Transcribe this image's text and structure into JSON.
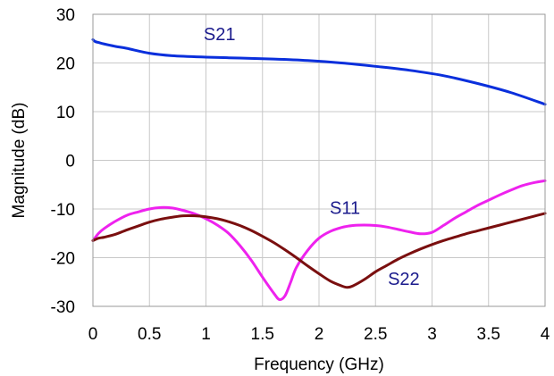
{
  "chart_data": {
    "type": "line",
    "title": "",
    "xlabel": "Frequency (GHz)",
    "ylabel": "Magnitude (dB)",
    "xlim": [
      0,
      4
    ],
    "ylim": [
      -30,
      30
    ],
    "x_ticks": [
      0,
      0.5,
      1,
      1.5,
      2,
      2.5,
      3,
      3.5,
      4
    ],
    "y_ticks": [
      -30,
      -20,
      -10,
      0,
      10,
      20,
      30
    ],
    "x_tick_labels": [
      "0",
      "0.5",
      "1",
      "1.5",
      "2",
      "2.5",
      "3",
      "3.5",
      "4"
    ],
    "y_tick_labels": [
      "-30",
      "-20",
      "-10",
      "0",
      "10",
      "20",
      "30"
    ],
    "grid": true,
    "legend": "none",
    "series": [
      {
        "name": "S21",
        "color": "#0a2fdc",
        "label_color": "#1a1a8c",
        "x": [
          0,
          0.02,
          0.05,
          0.1,
          0.2,
          0.3,
          0.5,
          0.7,
          1.0,
          1.3,
          1.6,
          1.9,
          2.2,
          2.5,
          2.8,
          3.1,
          3.4,
          3.7,
          4.0
        ],
        "y": [
          24.8,
          24.4,
          24.2,
          23.9,
          23.4,
          23.0,
          22.0,
          21.5,
          21.2,
          21.0,
          20.8,
          20.5,
          20.0,
          19.3,
          18.5,
          17.4,
          15.8,
          13.9,
          11.5
        ]
      },
      {
        "name": "S11",
        "color": "#ee22ee",
        "label_color": "#1a1a8c",
        "x": [
          0,
          0.05,
          0.1,
          0.2,
          0.3,
          0.4,
          0.5,
          0.6,
          0.7,
          0.8,
          0.9,
          1.0,
          1.1,
          1.2,
          1.3,
          1.4,
          1.5,
          1.6,
          1.65,
          1.7,
          1.75,
          1.8,
          1.9,
          2.0,
          2.1,
          2.2,
          2.3,
          2.4,
          2.5,
          2.6,
          2.7,
          2.8,
          2.9,
          3.0,
          3.1,
          3.2,
          3.3,
          3.4,
          3.5,
          3.6,
          3.7,
          3.8,
          3.9,
          4.0
        ],
        "y": [
          -16.5,
          -15.0,
          -14.0,
          -12.5,
          -11.3,
          -10.6,
          -10.0,
          -9.7,
          -9.8,
          -10.3,
          -11.0,
          -12.0,
          -13.3,
          -15.0,
          -17.5,
          -20.5,
          -24.0,
          -27.3,
          -28.6,
          -27.8,
          -25.0,
          -22.0,
          -18.5,
          -16.0,
          -14.6,
          -13.8,
          -13.4,
          -13.3,
          -13.4,
          -13.7,
          -14.2,
          -14.7,
          -15.1,
          -14.8,
          -13.4,
          -11.9,
          -10.6,
          -9.3,
          -8.2,
          -7.1,
          -6.1,
          -5.2,
          -4.6,
          -4.2
        ]
      },
      {
        "name": "S22",
        "color": "#7a0f0f",
        "label_color": "#1a1a8c",
        "x": [
          0,
          0.05,
          0.1,
          0.2,
          0.3,
          0.4,
          0.5,
          0.6,
          0.7,
          0.8,
          0.9,
          1.0,
          1.1,
          1.2,
          1.3,
          1.4,
          1.5,
          1.6,
          1.7,
          1.8,
          1.9,
          2.0,
          2.1,
          2.2,
          2.25,
          2.3,
          2.4,
          2.5,
          2.6,
          2.7,
          2.8,
          2.9,
          3.0,
          3.1,
          3.2,
          3.3,
          3.4,
          3.5,
          3.6,
          3.7,
          3.8,
          3.9,
          4.0
        ],
        "y": [
          -16.5,
          -16.0,
          -15.8,
          -15.2,
          -14.3,
          -13.5,
          -12.7,
          -12.1,
          -11.7,
          -11.4,
          -11.4,
          -11.6,
          -12.0,
          -12.6,
          -13.4,
          -14.4,
          -15.6,
          -16.9,
          -18.4,
          -20.0,
          -21.7,
          -23.3,
          -24.8,
          -25.8,
          -26.1,
          -25.8,
          -24.5,
          -22.9,
          -21.6,
          -20.3,
          -19.2,
          -18.2,
          -17.3,
          -16.5,
          -15.8,
          -15.1,
          -14.5,
          -13.9,
          -13.3,
          -12.7,
          -12.1,
          -11.5,
          -10.9
        ]
      }
    ],
    "annotations": [
      {
        "text": "S21",
        "series": "S21",
        "x": 1.12,
        "y": 24.7,
        "anchor": "middle"
      },
      {
        "text": "S11",
        "series": "S11",
        "x": 2.23,
        "y": -11.0,
        "anchor": "middle"
      },
      {
        "text": "S22",
        "series": "S22",
        "x": 2.75,
        "y": -25.6,
        "anchor": "middle"
      }
    ]
  }
}
